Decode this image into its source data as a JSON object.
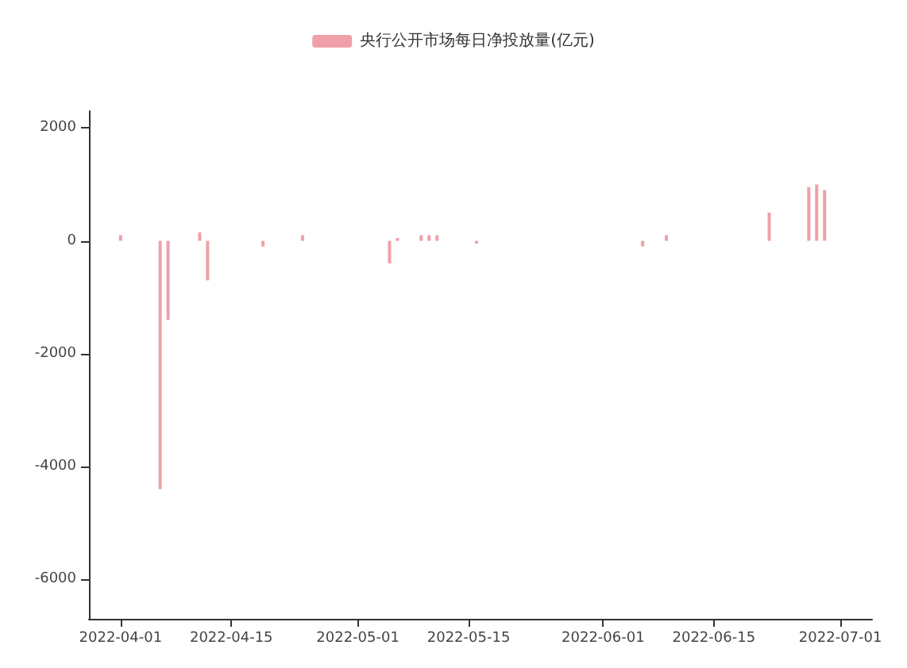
{
  "chart_data": {
    "type": "bar",
    "legend": "top",
    "x": [
      "2022-04-01",
      "2022-04-06",
      "2022-04-07",
      "2022-04-11",
      "2022-04-12",
      "2022-04-19",
      "2022-04-24",
      "2022-05-05",
      "2022-05-06",
      "2022-05-09",
      "2022-05-10",
      "2022-05-11",
      "2022-05-16",
      "2022-06-06",
      "2022-06-09",
      "2022-06-22",
      "2022-06-27",
      "2022-06-28",
      "2022-06-29"
    ],
    "series": [
      {
        "name": "央行公开市场每日净投放量(亿元)",
        "color": "#f0a0a8",
        "values": [
          100,
          -4400,
          -1400,
          150,
          -700,
          -100,
          100,
          -400,
          50,
          100,
          100,
          100,
          -50,
          -100,
          100,
          500,
          950,
          1000,
          900
        ]
      }
    ],
    "xlim": [
      "2022-03-28",
      "2022-07-05"
    ],
    "xticks": [
      {
        "value": "2022-04-01",
        "label": "2022-04-01"
      },
      {
        "value": "2022-04-15",
        "label": "2022-04-15"
      },
      {
        "value": "2022-05-01",
        "label": "2022-05-01"
      },
      {
        "value": "2022-05-15",
        "label": "2022-05-15"
      },
      {
        "value": "2022-06-01",
        "label": "2022-06-01"
      },
      {
        "value": "2022-06-15",
        "label": "2022-06-15"
      },
      {
        "value": "2022-07-01",
        "label": "2022-07-01"
      }
    ],
    "ylim": [
      -6700,
      2300
    ],
    "yticks": [
      -6000,
      -4000,
      -2000,
      0,
      2000
    ],
    "grid": false
  }
}
